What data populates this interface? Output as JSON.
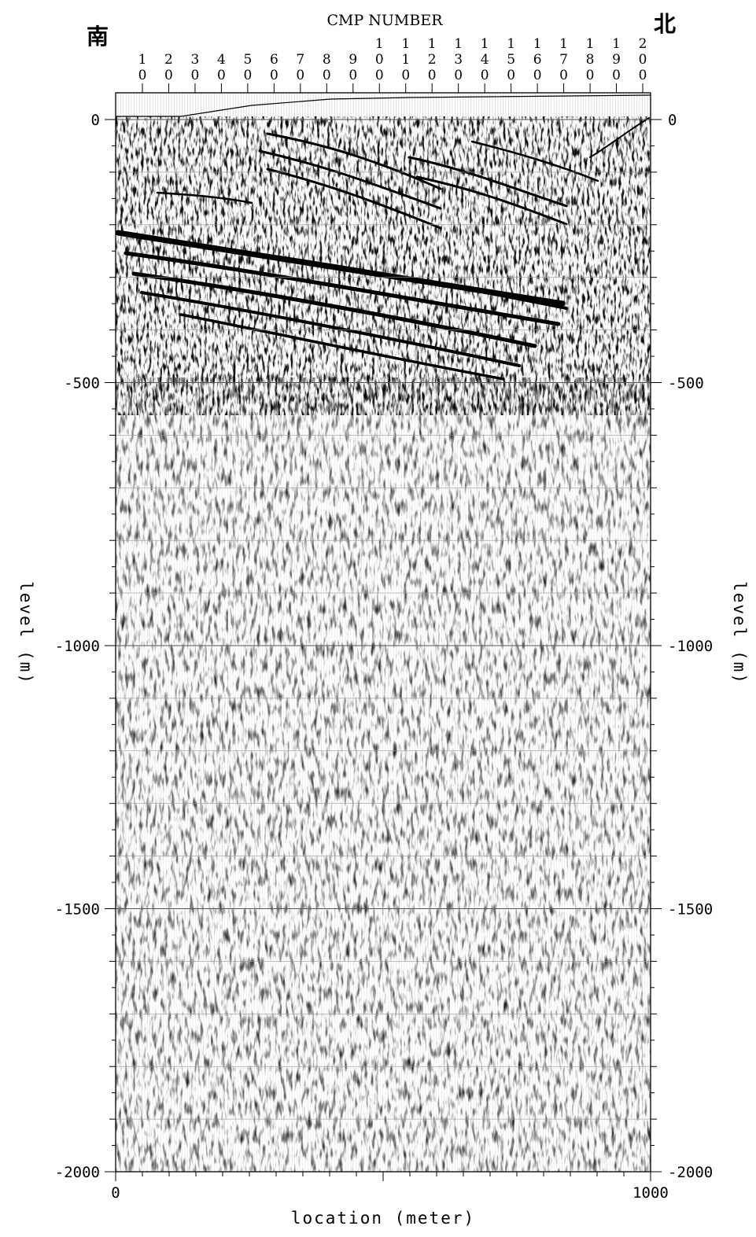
{
  "chart_data": {
    "type": "heatmap",
    "title": "CMP NUMBER",
    "direction_labels": {
      "left": "南",
      "right": "北"
    },
    "xlabel": "location (meter)",
    "ylabel_left": "level (m)",
    "ylabel_right": "level (m)",
    "xlim": [
      0,
      1000
    ],
    "ylim": [
      -2000,
      0
    ],
    "x_ticks": [
      {
        "value": 0,
        "label": "0"
      },
      {
        "value": 1000,
        "label": "1000"
      }
    ],
    "y_ticks": [
      {
        "value": 0,
        "label": "0"
      },
      {
        "value": -500,
        "label": "-500"
      },
      {
        "value": -1000,
        "label": "-1000"
      },
      {
        "value": -1500,
        "label": "-1500"
      },
      {
        "value": -2000,
        "label": "-2000"
      }
    ],
    "cmp_ticks": [
      "10",
      "20",
      "30",
      "40",
      "50",
      "60",
      "70",
      "80",
      "90",
      "100",
      "110",
      "120",
      "130",
      "140",
      "150",
      "160",
      "170",
      "180",
      "190",
      "200"
    ],
    "grid": true,
    "colors": {
      "trace": "#000000",
      "background": "#ffffff",
      "grid": "#777777"
    },
    "content": "seismic reflection section (wiggle traces, variable density)"
  }
}
